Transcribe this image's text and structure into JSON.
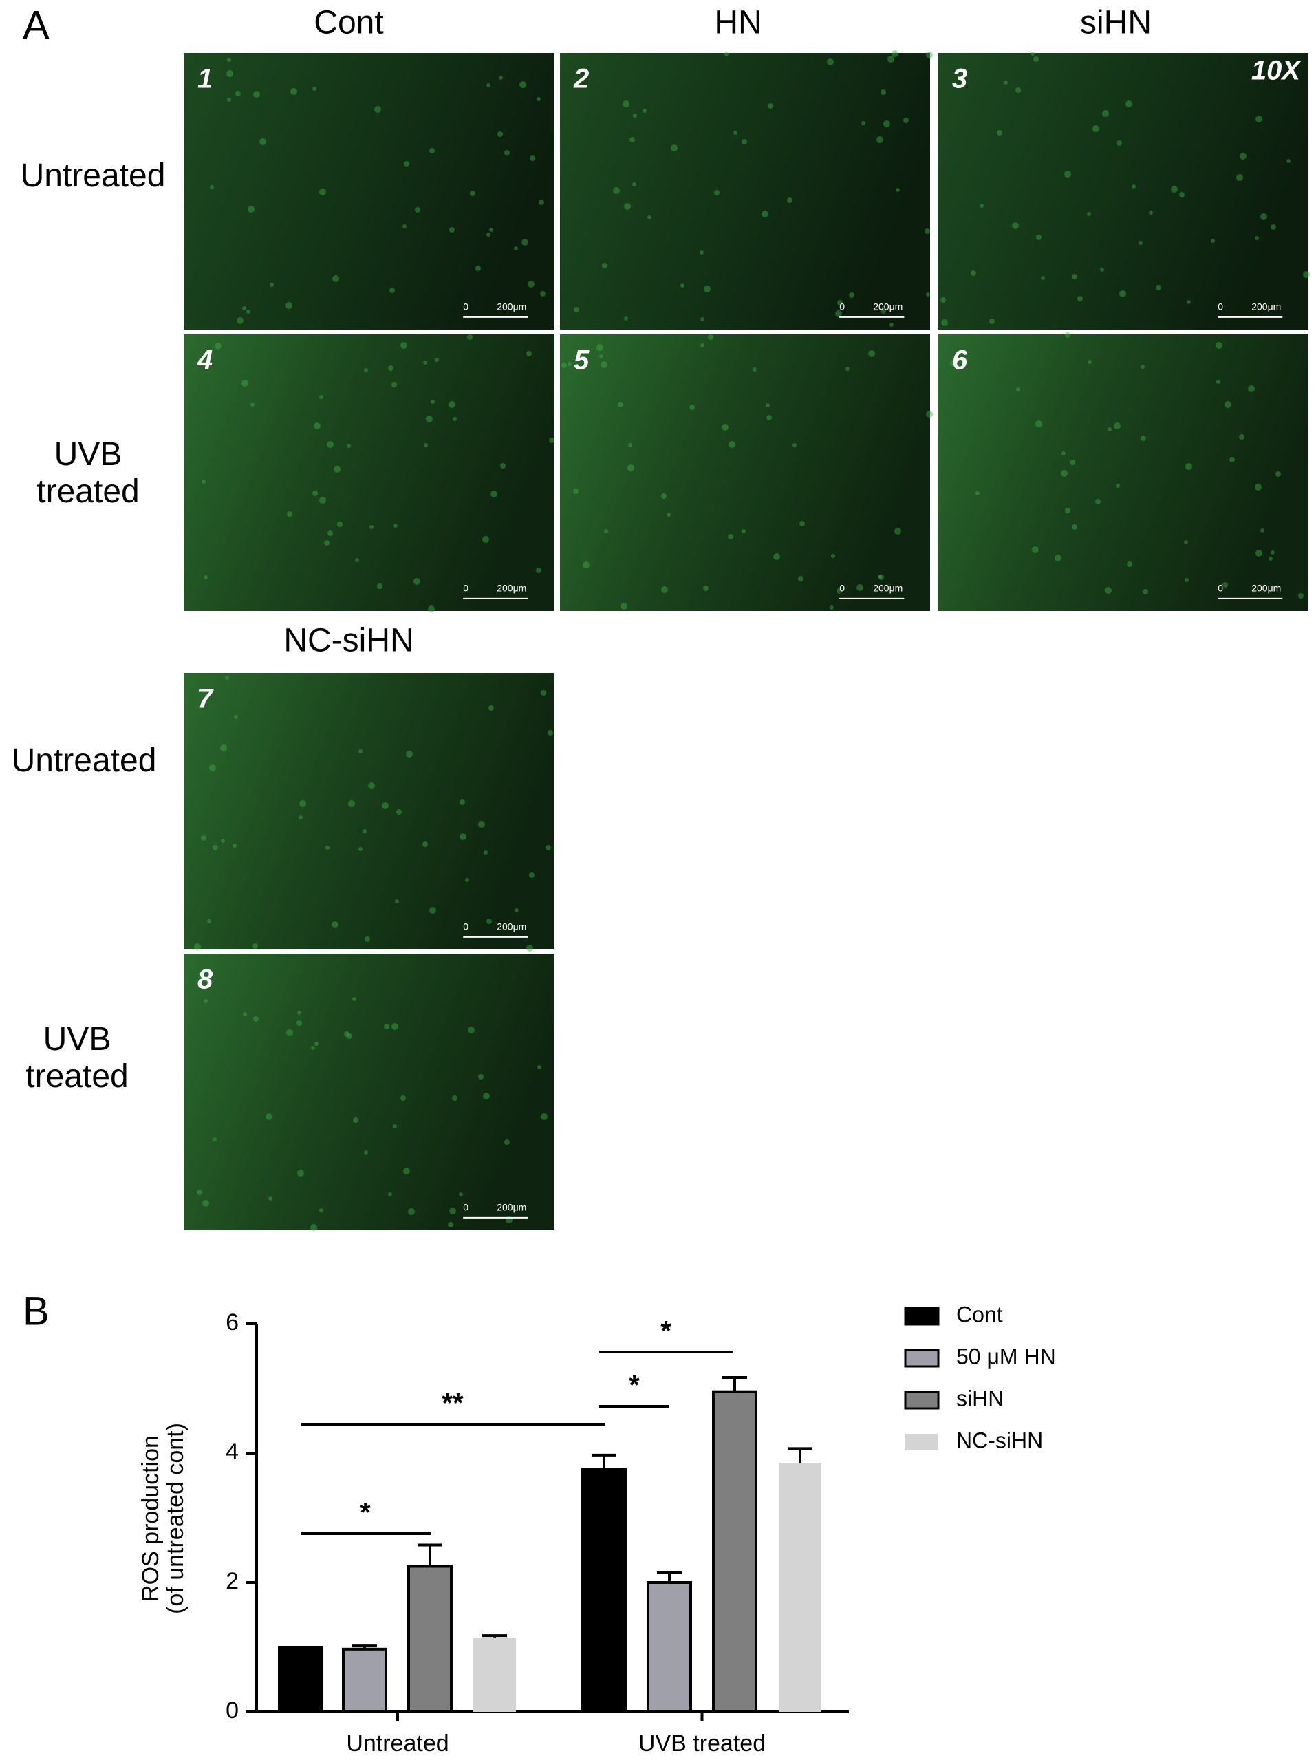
{
  "panel_a": {
    "label": "A",
    "magnification": "10X",
    "scale_labels": [
      "0",
      "200μm"
    ],
    "column_headers": [
      "Cont",
      "HN",
      "siHN",
      "NC-siHN"
    ],
    "row_labels": [
      "Untreated",
      "UVB treated",
      "Untreated",
      "UVB treated"
    ],
    "images": [
      "1",
      "2",
      "3",
      "4",
      "5",
      "6",
      "7",
      "8"
    ]
  },
  "chart_data": {
    "type": "bar",
    "label": "B",
    "ylabel": [
      "ROS production",
      "(of untreated cont)"
    ],
    "categories": [
      "Untreated",
      "UVB treated"
    ],
    "series": [
      {
        "name": "Cont",
        "color": "#000000",
        "values": [
          1.0,
          3.75
        ],
        "errors": [
          0,
          0.22
        ]
      },
      {
        "name": "50 μM HN",
        "color": "#a0a0aa",
        "values": [
          0.97,
          2.0
        ],
        "errors": [
          0.05,
          0.15
        ]
      },
      {
        "name": "siHN",
        "color": "#7f7f7f",
        "values": [
          2.25,
          4.95
        ],
        "errors": [
          0.33,
          0.22
        ]
      },
      {
        "name": "NC-siHN",
        "color": "#d4d4d4",
        "values": [
          1.15,
          3.85
        ],
        "errors": [
          0.03,
          0.22
        ]
      }
    ],
    "ylim": [
      0,
      6
    ],
    "yticks": [
      0,
      2,
      4,
      6
    ],
    "annotations": [
      "*",
      "**",
      "*",
      "*"
    ]
  }
}
